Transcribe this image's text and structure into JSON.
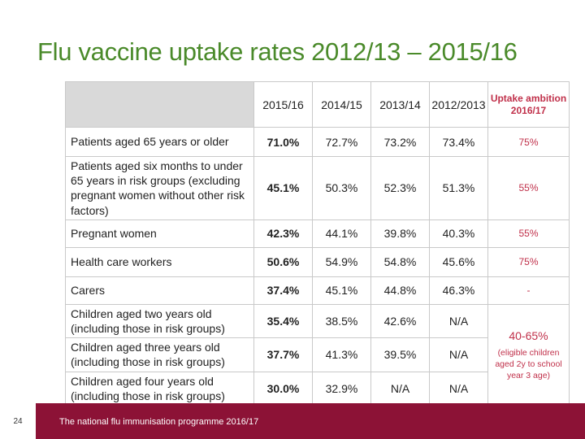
{
  "title": "Flu vaccine uptake rates 2012/13 – 2015/16",
  "table": {
    "columns": [
      "2015/16",
      "2014/15",
      "2013/14",
      "2012/2013"
    ],
    "ambition_header": "Uptake ambition 2016/17",
    "rows": [
      {
        "label": "Patients aged 65 years or older",
        "values": [
          "71.0%",
          "72.7%",
          "73.2%",
          "73.4%"
        ],
        "ambition": "75%"
      },
      {
        "label": "Patients aged six months to under 65 years in risk groups (excluding pregnant women without other risk factors)",
        "values": [
          "45.1%",
          "50.3%",
          "52.3%",
          "51.3%"
        ],
        "ambition": "55%"
      },
      {
        "label": "Pregnant women",
        "values": [
          "42.3%",
          "44.1%",
          "39.8%",
          "40.3%"
        ],
        "ambition": "55%"
      },
      {
        "label": "Health care workers",
        "values": [
          "50.6%",
          "54.9%",
          "54.8%",
          "45.6%"
        ],
        "ambition": "75%"
      },
      {
        "label": "Carers",
        "values": [
          "37.4%",
          "45.1%",
          "44.8%",
          "46.3%"
        ],
        "ambition": "-"
      },
      {
        "label": "Children aged two years old (including those in risk groups)",
        "values": [
          "35.4%",
          "38.5%",
          "42.6%",
          "N/A"
        ]
      },
      {
        "label": "Children aged three years old (including those in risk groups)",
        "values": [
          "37.7%",
          "41.3%",
          "39.5%",
          "N/A"
        ]
      },
      {
        "label": "Children aged four years old (including those in risk groups)",
        "values": [
          "30.0%",
          "32.9%",
          "N/A",
          "N/A"
        ]
      }
    ],
    "children_ambition": {
      "range": "40-65%",
      "note": "(eligible children aged 2y to school year 3 age)"
    }
  },
  "footer": {
    "page_number": "24",
    "text": "The national flu immunisation programme 2016/17"
  },
  "colors": {
    "title": "#4a8a2a",
    "accent": "#c0304a",
    "footer_bar": "#8c1236",
    "header_fill": "#d9d9d9"
  }
}
